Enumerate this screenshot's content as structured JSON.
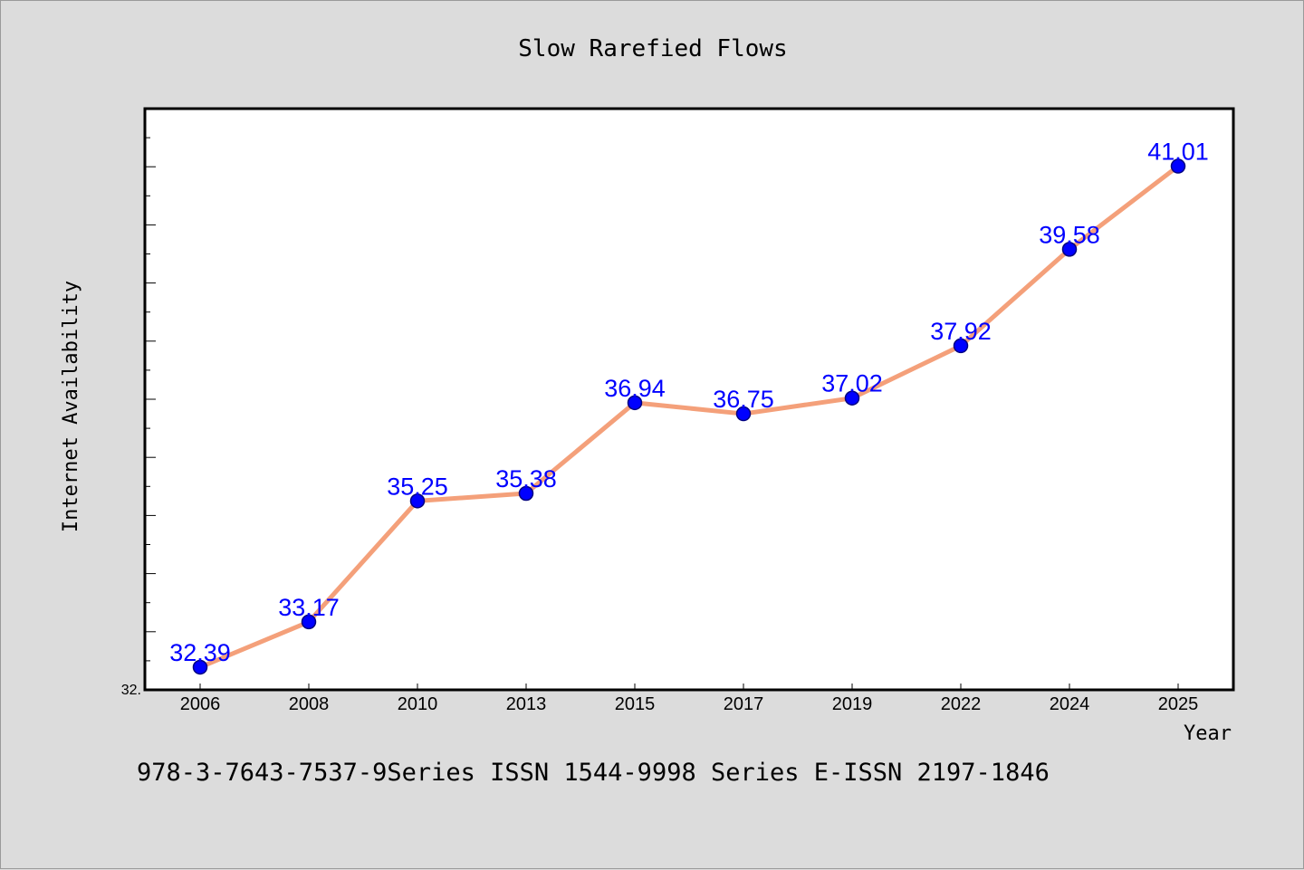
{
  "chart_data": {
    "type": "line",
    "title": "Slow Rarefied Flows",
    "xlabel": "Year",
    "ylabel": "Internet Availability",
    "categories": [
      "2006",
      "2008",
      "2010",
      "2013",
      "2015",
      "2017",
      "2019",
      "2022",
      "2024",
      "2025"
    ],
    "series": [
      {
        "values": [
          32.39,
          33.17,
          35.25,
          35.38,
          36.94,
          36.75,
          37.02,
          37.92,
          39.58,
          41.01
        ],
        "labels": [
          "32.39",
          "33.17",
          "35.25",
          "35.38",
          "36.94",
          "36.75",
          "37.02",
          "37.92",
          "39.58",
          "41.01"
        ]
      }
    ],
    "ylim": [
      32.0,
      42.0
    ],
    "y_tick_labels": [
      "32."
    ],
    "grid": false,
    "colors": {
      "line": "#f4a07a",
      "marker": "#0000ff",
      "marker_edge": "#000080",
      "data_label": "#0000ff",
      "background": "#dcdcdc",
      "plot_area": "#ffffff"
    }
  },
  "footnote": "978-3-7643-7537-9Series ISSN 1544-9998 Series E-ISSN 2197-1846"
}
